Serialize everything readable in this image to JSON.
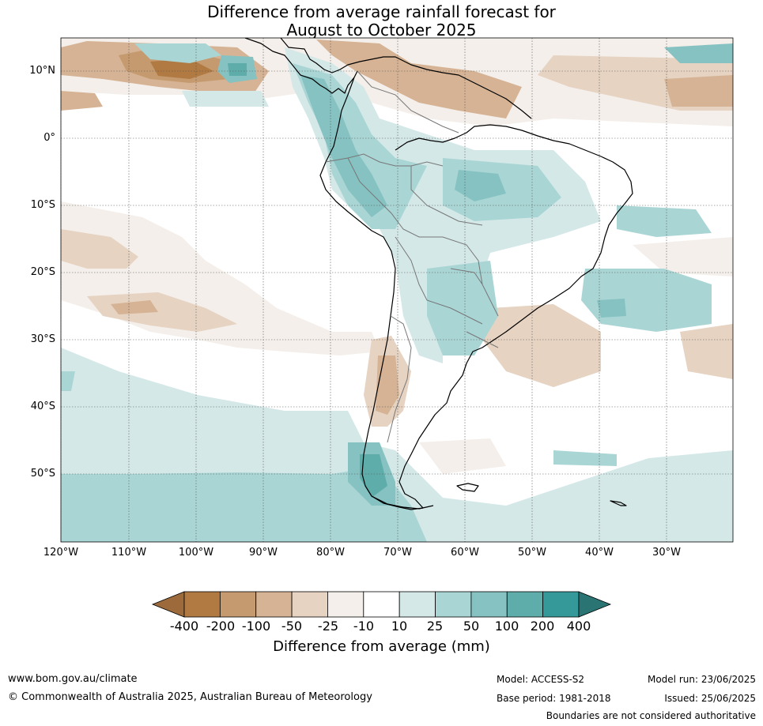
{
  "title_line1": "Difference from average rainfall forecast for",
  "title_line2": "August to October 2025",
  "map": {
    "lat_labels": [
      "10°N",
      "0°",
      "10°S",
      "20°S",
      "30°S",
      "40°S",
      "50°S"
    ],
    "lon_labels": [
      "120°W",
      "110°W",
      "100°W",
      "90°W",
      "80°W",
      "70°W",
      "60°W",
      "50°W",
      "40°W",
      "30°W"
    ]
  },
  "colorbar": {
    "ticks": [
      "-400",
      "-200",
      "-100",
      "-50",
      "-25",
      "-10",
      "10",
      "25",
      "50",
      "100",
      "200",
      "400"
    ],
    "colors": [
      "#9c6a3b",
      "#b07a42",
      "#c59a6e",
      "#d5b394",
      "#e6d3c2",
      "#f4efea",
      "#ffffff",
      "#d5e8e8",
      "#aad5d5",
      "#86c2c2",
      "#5fadab",
      "#35999a",
      "#2a7474"
    ],
    "title": "Difference from average (mm)"
  },
  "footer": {
    "website": "www.bom.gov.au/climate",
    "copyright": "© Commonwealth of Australia 2025, Australian Bureau of Meteorology",
    "model": "Model: ACCESS-S2",
    "base_period": "Base period: 1981-2018",
    "model_run": "Model run: 23/06/2025",
    "issued": "Issued: 25/06/2025",
    "disclaimer": "Boundaries are not considered authoritative"
  }
}
